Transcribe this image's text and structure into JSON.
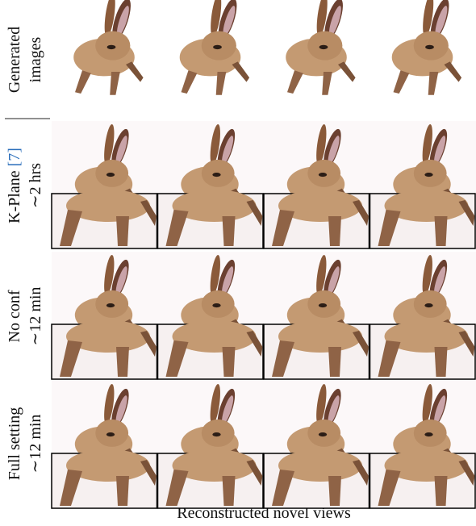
{
  "rows": [
    {
      "label_lines": [
        "Generated",
        "images"
      ]
    },
    {
      "label": "K-Plane",
      "ref": "[7]",
      "time": "∼2 hrs"
    },
    {
      "label": "No conf",
      "time": "∼12 min"
    },
    {
      "label": "Full setting",
      "time": "∼12 min"
    }
  ],
  "caption": "Reconstructed novel views"
}
